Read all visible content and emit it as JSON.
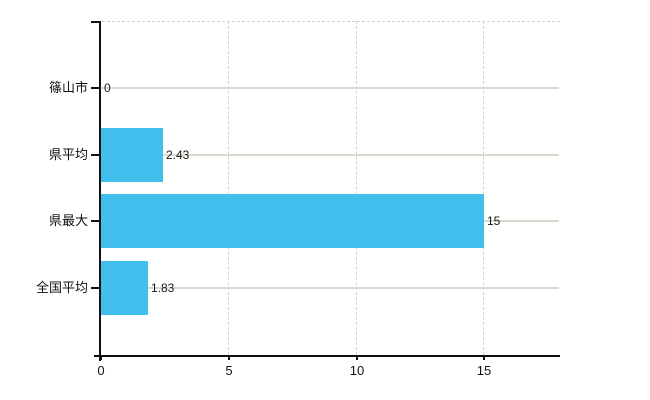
{
  "chart_data": {
    "type": "bar",
    "orientation": "horizontal",
    "title": "",
    "xlabel": "",
    "ylabel": "",
    "categories": [
      "篠山市",
      "県平均",
      "県最大",
      "全国平均"
    ],
    "values": [
      0,
      2.43,
      15,
      1.83
    ],
    "value_labels": [
      "0",
      "2.43",
      "15",
      "1.83"
    ],
    "x_ticks": [
      0,
      5,
      10,
      15
    ],
    "x_tick_labels": [
      "0",
      "5",
      "10",
      "15"
    ],
    "xlim": [
      0,
      18
    ],
    "grid": {
      "horizontal": "solid",
      "vertical": "dashed",
      "plot_top_border": "dashed"
    },
    "legend": "none",
    "colors": {
      "bar": "#42c0ed",
      "axis": "#111111",
      "gridline_horizontal": "#d6dccc",
      "gridline_vertical": "#d9d2d3",
      "plot_top_border": "#d5d1da",
      "background": "#ffffff",
      "label_text": "#111111"
    }
  }
}
